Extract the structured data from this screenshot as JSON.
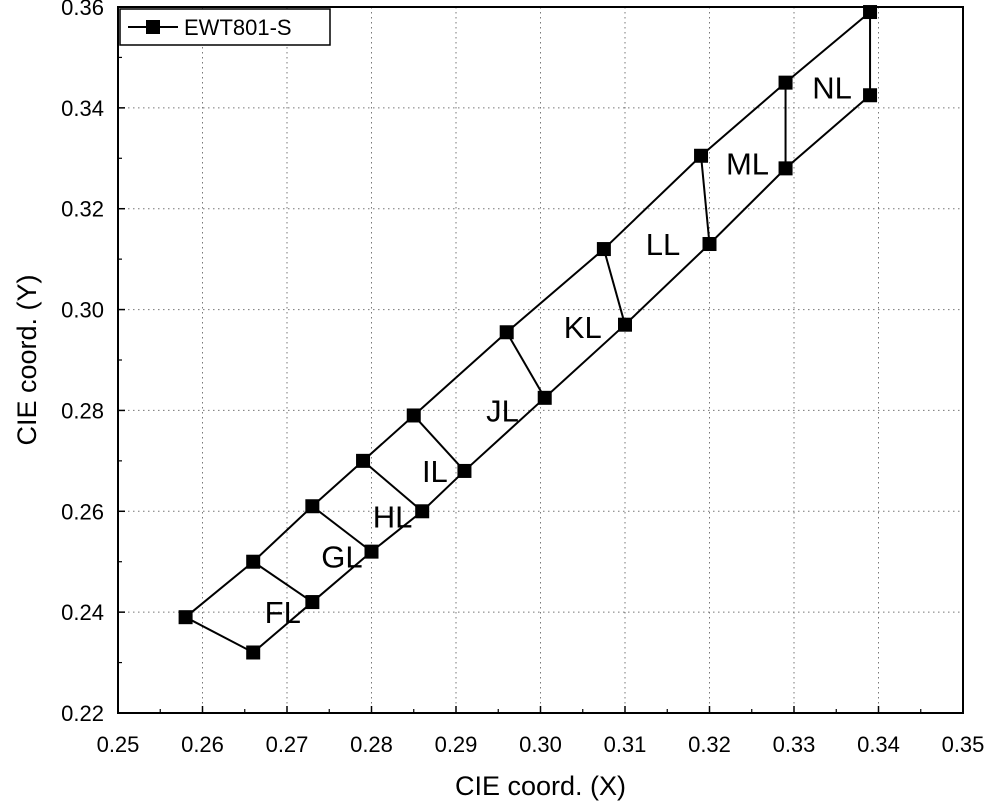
{
  "chart_data": {
    "type": "scatter",
    "title": "",
    "xlabel": "CIE coord. (X)",
    "ylabel": "CIE coord. (Y)",
    "xlim": [
      0.25,
      0.35
    ],
    "ylim": [
      0.22,
      0.36
    ],
    "xticks": [
      "0.25",
      "0.26",
      "0.27",
      "0.28",
      "0.29",
      "0.30",
      "0.31",
      "0.32",
      "0.33",
      "0.34",
      "0.35"
    ],
    "yticks": [
      "0.22",
      "0.24",
      "0.26",
      "0.28",
      "0.30",
      "0.32",
      "0.34",
      "0.36"
    ],
    "grid": true,
    "legend": {
      "position": "top-left",
      "entries": [
        "EWT801-S"
      ]
    },
    "series": [
      {
        "name": "EWT801-S",
        "color": "#000000",
        "marker": "square",
        "points": [
          {
            "x": 0.258,
            "y": 0.239
          },
          {
            "x": 0.266,
            "y": 0.25
          },
          {
            "x": 0.266,
            "y": 0.232
          },
          {
            "x": 0.273,
            "y": 0.261
          },
          {
            "x": 0.273,
            "y": 0.242
          },
          {
            "x": 0.279,
            "y": 0.27
          },
          {
            "x": 0.28,
            "y": 0.252
          },
          {
            "x": 0.285,
            "y": 0.279
          },
          {
            "x": 0.286,
            "y": 0.26
          },
          {
            "x": 0.291,
            "y": 0.268
          },
          {
            "x": 0.296,
            "y": 0.2955
          },
          {
            "x": 0.3005,
            "y": 0.2825
          },
          {
            "x": 0.3075,
            "y": 0.312
          },
          {
            "x": 0.31,
            "y": 0.297
          },
          {
            "x": 0.319,
            "y": 0.3305
          },
          {
            "x": 0.32,
            "y": 0.313
          },
          {
            "x": 0.329,
            "y": 0.345
          },
          {
            "x": 0.329,
            "y": 0.328
          },
          {
            "x": 0.339,
            "y": 0.359
          },
          {
            "x": 0.339,
            "y": 0.3425
          }
        ],
        "segments": [
          [
            [
              0.258,
              0.239
            ],
            [
              0.266,
              0.25
            ],
            [
              0.273,
              0.261
            ],
            [
              0.279,
              0.27
            ],
            [
              0.285,
              0.279
            ],
            [
              0.296,
              0.2955
            ],
            [
              0.3075,
              0.312
            ],
            [
              0.319,
              0.3305
            ],
            [
              0.329,
              0.345
            ],
            [
              0.339,
              0.359
            ]
          ],
          [
            [
              0.258,
              0.239
            ],
            [
              0.266,
              0.232
            ],
            [
              0.273,
              0.242
            ],
            [
              0.28,
              0.252
            ],
            [
              0.286,
              0.26
            ],
            [
              0.291,
              0.268
            ],
            [
              0.3005,
              0.2825
            ],
            [
              0.31,
              0.297
            ],
            [
              0.32,
              0.313
            ],
            [
              0.329,
              0.328
            ],
            [
              0.339,
              0.3425
            ]
          ],
          [
            [
              0.266,
              0.25
            ],
            [
              0.273,
              0.242
            ]
          ],
          [
            [
              0.273,
              0.261
            ],
            [
              0.28,
              0.252
            ]
          ],
          [
            [
              0.279,
              0.27
            ],
            [
              0.286,
              0.26
            ]
          ],
          [
            [
              0.285,
              0.279
            ],
            [
              0.291,
              0.268
            ]
          ],
          [
            [
              0.296,
              0.2955
            ],
            [
              0.3005,
              0.2825
            ]
          ],
          [
            [
              0.3075,
              0.312
            ],
            [
              0.31,
              0.297
            ]
          ],
          [
            [
              0.319,
              0.3305
            ],
            [
              0.32,
              0.313
            ]
          ],
          [
            [
              0.329,
              0.345
            ],
            [
              0.329,
              0.328
            ]
          ],
          [
            [
              0.339,
              0.359
            ],
            [
              0.339,
              0.3425
            ]
          ]
        ]
      }
    ],
    "annotations": [
      {
        "text": "FL",
        "x": 0.2695,
        "y": 0.24
      },
      {
        "text": "GL",
        "x": 0.2765,
        "y": 0.251
      },
      {
        "text": "HL",
        "x": 0.2825,
        "y": 0.259
      },
      {
        "text": "IL",
        "x": 0.2875,
        "y": 0.268
      },
      {
        "text": "JL",
        "x": 0.2955,
        "y": 0.28
      },
      {
        "text": "KL",
        "x": 0.305,
        "y": 0.2965
      },
      {
        "text": "LL",
        "x": 0.3145,
        "y": 0.313
      },
      {
        "text": "ML",
        "x": 0.3245,
        "y": 0.329
      },
      {
        "text": "NL",
        "x": 0.3345,
        "y": 0.344
      }
    ]
  }
}
